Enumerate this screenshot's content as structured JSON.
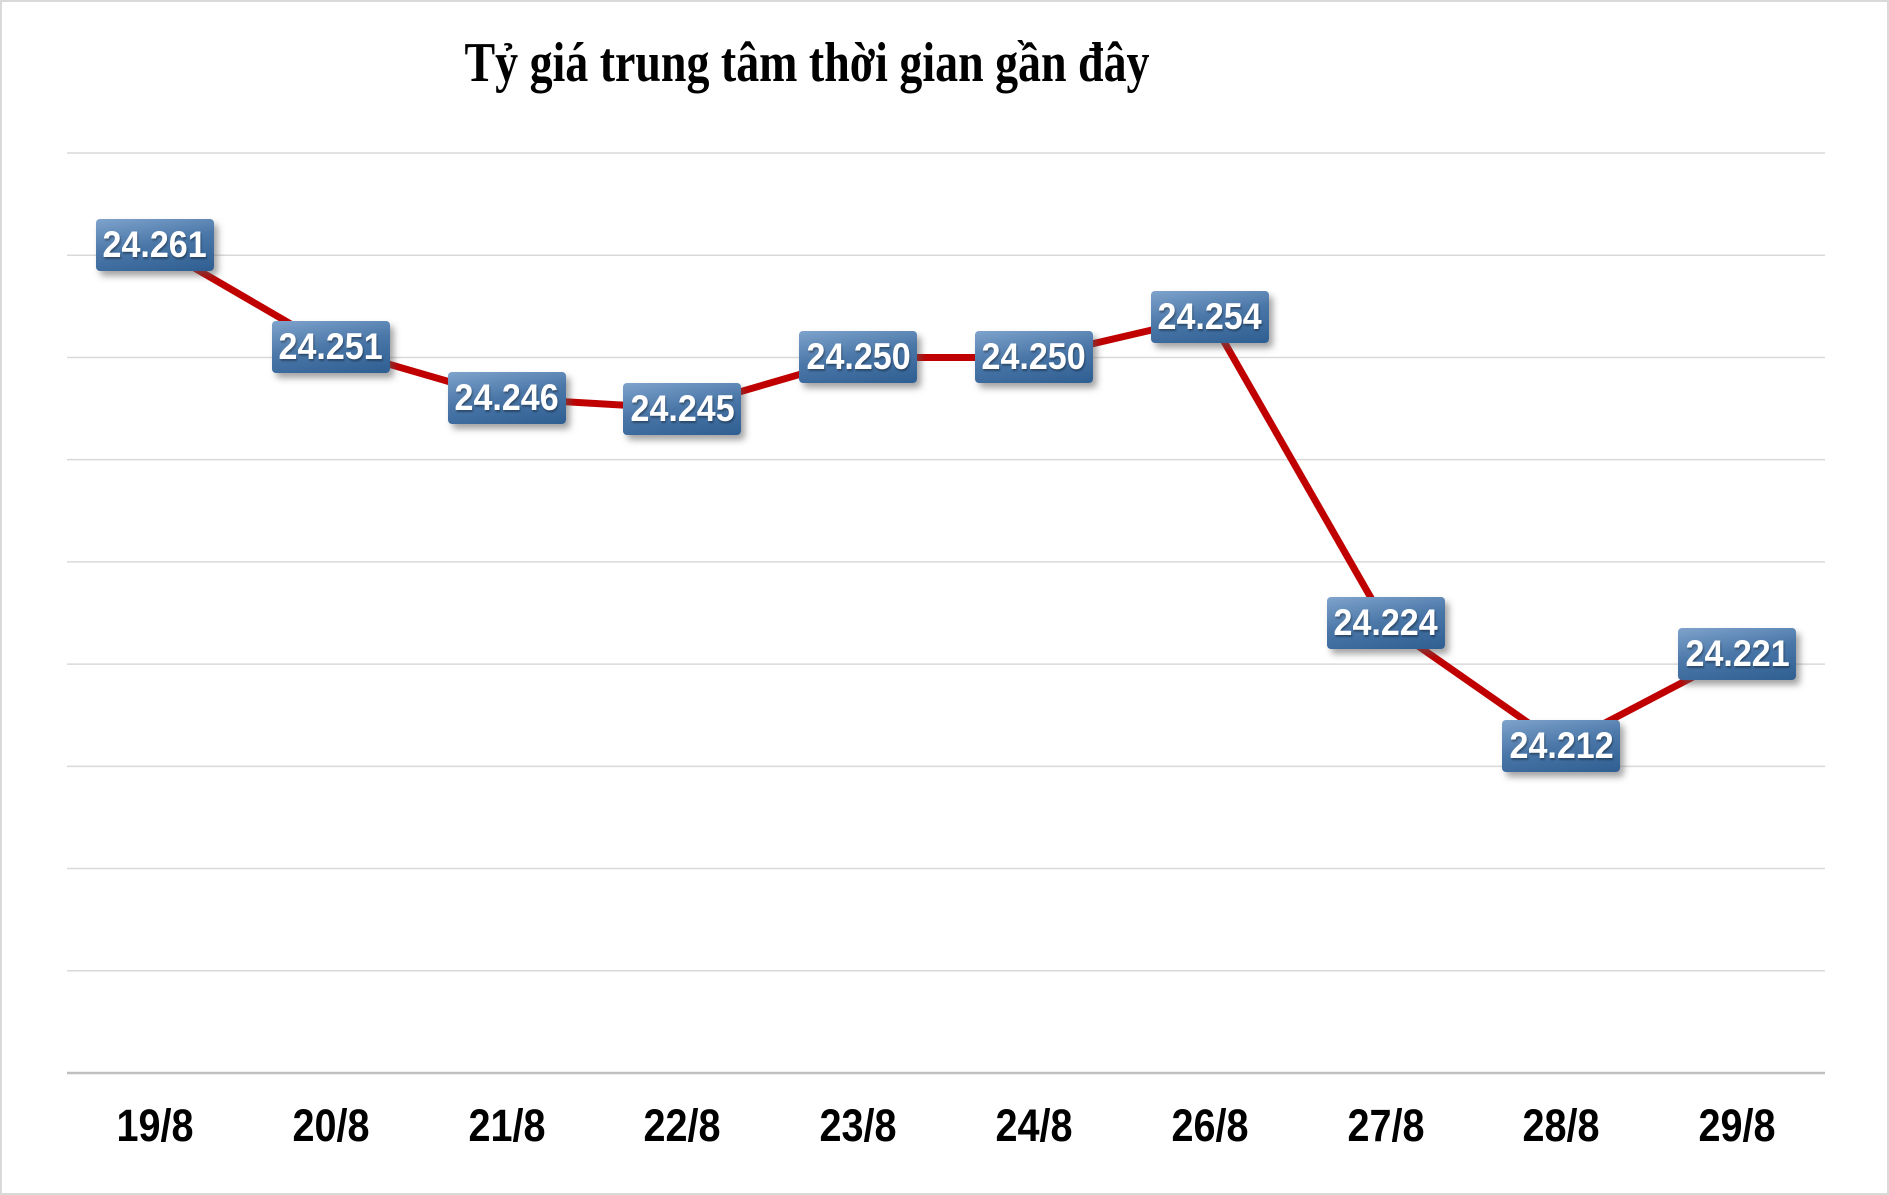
{
  "chart_data": {
    "type": "line",
    "title": "Tỷ giá trung tâm thời gian gần đây",
    "categories": [
      "19/8",
      "20/8",
      "21/8",
      "22/8",
      "23/8",
      "24/8",
      "26/8",
      "27/8",
      "28/8",
      "29/8"
    ],
    "series": [
      {
        "values": [
          24261,
          24251,
          24246,
          24245,
          24250,
          24250,
          24254,
          24224,
          24212,
          24221
        ],
        "point_labels": [
          "24.261",
          "24.251",
          "24.246",
          "24.245",
          "24.250",
          "24.250",
          "24.254",
          "24.224",
          "24.212",
          "24.221"
        ]
      }
    ],
    "ylim": [
      24180,
      24270
    ],
    "gridline_step": 10,
    "grid": true,
    "legend_position": "none",
    "xlabel": "",
    "ylabel": ""
  },
  "colors": {
    "line": "#C00000",
    "label_box_top": "#7FA3CC",
    "label_box_mid": "#4A77A8",
    "label_box_bottom": "#2F5E92",
    "label_text": "#FFFFFF",
    "gridline": "#D9D9D9",
    "axis_line": "#BFBFBF",
    "axis_label_text": "#000000",
    "title_text": "#000000",
    "background": "#FFFFFF"
  }
}
